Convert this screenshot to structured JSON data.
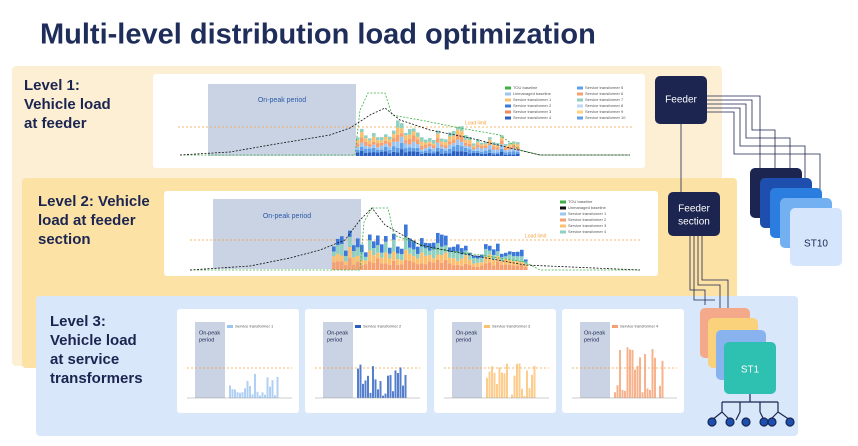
{
  "title": "Multi-level distribution load optimization",
  "levels": [
    {
      "lines": [
        "Level 1:",
        "Vehicle load",
        "at feeder"
      ]
    },
    {
      "lines": [
        "Level 2: Vehicle",
        "load at feeder",
        "section"
      ]
    },
    {
      "lines": [
        "Level 3:",
        "Vehicle load",
        "at service",
        "transformers"
      ]
    }
  ],
  "nodes": {
    "feeder": "Feeder",
    "feeder_section": [
      "Feeder",
      "section"
    ],
    "st10": "ST10",
    "st1": "ST1"
  },
  "charts": {
    "on_peak": "On-peak period",
    "on_peak_short": [
      "On-peak",
      "period"
    ],
    "load_limit": "Load limit",
    "feeder_legend": [
      "TOU baseline",
      "Service transformer 5",
      "Unmanaged baseline",
      "Service transformer 6",
      "Service transformer 1",
      "Service transformer 7",
      "Service transformer 2",
      "Service transformer 8",
      "Service transformer 3",
      "Service transformer 9",
      "Service transformer 4",
      "Service transformer 10"
    ],
    "section_legend": [
      "TOU baseline",
      "Unmanaged baseline",
      "Service transformer 1",
      "Service transformer 2",
      "Service transformer 3",
      "Service transformer 4"
    ],
    "small_legend": [
      "Service transformer 1",
      "Service transformer 2",
      "Service transformer 3",
      "Service transformer 4"
    ]
  }
}
